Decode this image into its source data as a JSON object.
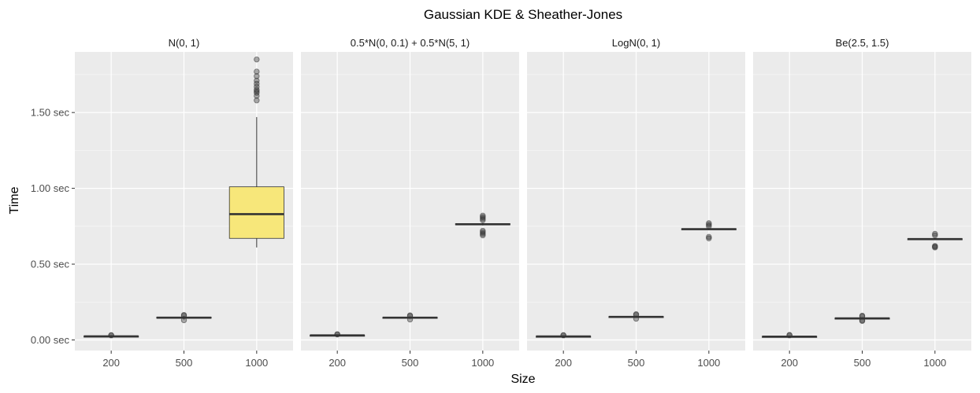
{
  "chart_data": {
    "type": "boxplot",
    "title": "Gaussian KDE & Sheather-Jones",
    "xlabel": "Size",
    "ylabel": "Time",
    "ylim": [
      -0.07,
      1.9
    ],
    "yticks": [
      0,
      0.5,
      1,
      1.5
    ],
    "ytick_labels": [
      "0.00 sec",
      "0.50 sec",
      "1.00 sec",
      "1.50 sec"
    ],
    "categories": [
      "200",
      "500",
      "1000"
    ],
    "grid": true,
    "colors": {
      "panel_bg": "#ebebeb",
      "grid_major": "#ffffff",
      "grid_minor": "#f5f5f5",
      "box_fill_highlight": "#f7e77a",
      "box_line": "#333333",
      "outlier": "#333333"
    },
    "panels": [
      {
        "strip": "N(0, 1)",
        "boxes": [
          {
            "x": "200",
            "min": 0.018,
            "q1": 0.022,
            "median": 0.024,
            "q3": 0.026,
            "max": 0.03,
            "outliers": [
              0.03,
              0.032
            ],
            "fill": "#333333"
          },
          {
            "x": "500",
            "min": 0.135,
            "q1": 0.143,
            "median": 0.147,
            "q3": 0.151,
            "max": 0.158,
            "outliers": [
              0.13,
              0.16,
              0.165
            ],
            "fill": "#333333"
          },
          {
            "x": "1000",
            "min": 0.61,
            "q1": 0.67,
            "median": 0.83,
            "q3": 1.01,
            "max": 1.47,
            "outliers": [
              1.58,
              1.61,
              1.63,
              1.64,
              1.65,
              1.67,
              1.69,
              1.71,
              1.74,
              1.77,
              1.85
            ],
            "fill": "#f7e77a"
          }
        ]
      },
      {
        "strip": "0.5*N(0, 0.1) + 0.5*N(5, 1)",
        "boxes": [
          {
            "x": "200",
            "min": 0.025,
            "q1": 0.028,
            "median": 0.03,
            "q3": 0.032,
            "max": 0.035,
            "outliers": [
              0.036,
              0.038
            ],
            "fill": "#333333"
          },
          {
            "x": "500",
            "min": 0.14,
            "q1": 0.144,
            "median": 0.147,
            "q3": 0.15,
            "max": 0.154,
            "outliers": [
              0.135,
              0.158,
              0.162
            ],
            "fill": "#333333"
          },
          {
            "x": "1000",
            "min": 0.755,
            "q1": 0.76,
            "median": 0.763,
            "q3": 0.767,
            "max": 0.772,
            "outliers": [
              0.69,
              0.7,
              0.71,
              0.72,
              0.79,
              0.8,
              0.81,
              0.82
            ],
            "fill": "#333333"
          }
        ]
      },
      {
        "strip": "LogN(0, 1)",
        "boxes": [
          {
            "x": "200",
            "min": 0.018,
            "q1": 0.021,
            "median": 0.023,
            "q3": 0.025,
            "max": 0.028,
            "outliers": [
              0.03,
              0.032
            ],
            "fill": "#333333"
          },
          {
            "x": "500",
            "min": 0.145,
            "q1": 0.149,
            "median": 0.152,
            "q3": 0.155,
            "max": 0.159,
            "outliers": [
              0.14,
              0.165,
              0.17
            ],
            "fill": "#333333"
          },
          {
            "x": "1000",
            "min": 0.724,
            "q1": 0.728,
            "median": 0.731,
            "q3": 0.734,
            "max": 0.738,
            "outliers": [
              0.67,
              0.68,
              0.75,
              0.76,
              0.77
            ],
            "fill": "#333333"
          }
        ]
      },
      {
        "strip": "Be(2.5, 1.5)",
        "boxes": [
          {
            "x": "200",
            "min": 0.017,
            "q1": 0.02,
            "median": 0.022,
            "q3": 0.024,
            "max": 0.027,
            "outliers": [
              0.03,
              0.033
            ],
            "fill": "#333333"
          },
          {
            "x": "500",
            "min": 0.135,
            "q1": 0.139,
            "median": 0.142,
            "q3": 0.145,
            "max": 0.15,
            "outliers": [
              0.125,
              0.13,
              0.155,
              0.16
            ],
            "fill": "#333333"
          },
          {
            "x": "1000",
            "min": 0.658,
            "q1": 0.662,
            "median": 0.665,
            "q3": 0.668,
            "max": 0.673,
            "outliers": [
              0.61,
              0.615,
              0.62,
              0.69,
              0.7
            ],
            "fill": "#333333"
          }
        ]
      }
    ]
  }
}
